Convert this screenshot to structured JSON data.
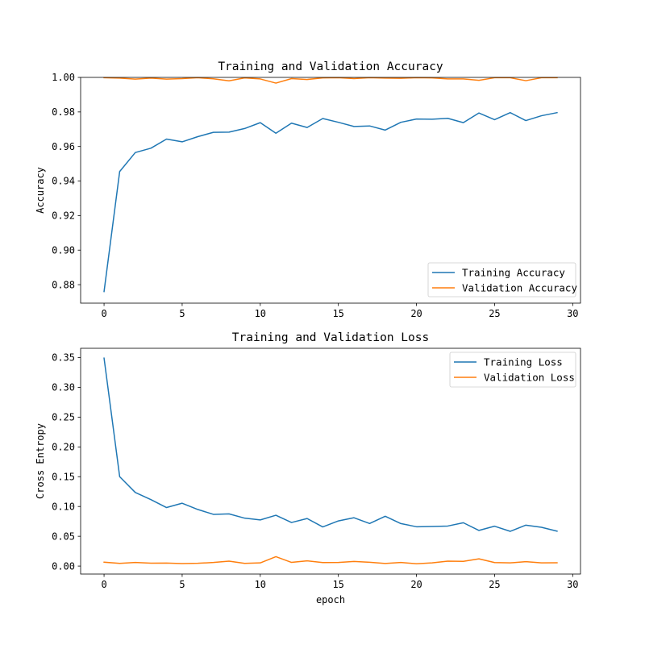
{
  "chart_data": [
    {
      "type": "line",
      "title": "Training and Validation Accuracy",
      "xlabel": "",
      "ylabel": "Accuracy",
      "xlim": [
        -1.5,
        30.5
      ],
      "ylim": [
        0.8693,
        1.0
      ],
      "xticks": [
        0,
        5,
        10,
        15,
        20,
        25,
        30
      ],
      "yticks": [
        0.88,
        0.9,
        0.92,
        0.94,
        0.96,
        0.98,
        1.0
      ],
      "ytick_decimals": 2,
      "legend_position": "lower-right",
      "grid": false,
      "x": [
        0,
        1,
        2,
        3,
        4,
        5,
        6,
        7,
        8,
        9,
        10,
        11,
        12,
        13,
        14,
        15,
        16,
        17,
        18,
        19,
        20,
        21,
        22,
        23,
        24,
        25,
        26,
        27,
        28,
        29
      ],
      "series": [
        {
          "name": "Training Accuracy",
          "color": "#1f77b4",
          "values": [
            0.876,
            0.9455,
            0.9565,
            0.959,
            0.9643,
            0.9627,
            0.9657,
            0.9682,
            0.9683,
            0.9704,
            0.9738,
            0.9677,
            0.9735,
            0.971,
            0.9762,
            0.974,
            0.9716,
            0.9719,
            0.9695,
            0.974,
            0.9759,
            0.9758,
            0.9763,
            0.9738,
            0.9794,
            0.9755,
            0.9796,
            0.975,
            0.9778,
            0.9796
          ]
        },
        {
          "name": "Validation Accuracy",
          "color": "#ff7f0e",
          "values": [
            0.9998,
            0.9996,
            0.999,
            0.9996,
            0.999,
            0.9993,
            0.9998,
            0.9992,
            0.998,
            0.9997,
            0.9991,
            0.9967,
            0.9993,
            0.9988,
            0.9997,
            0.9998,
            0.9993,
            0.9998,
            0.9996,
            0.9995,
            0.9998,
            0.9997,
            0.9991,
            0.9991,
            0.9983,
            0.9998,
            0.9998,
            0.9981,
            0.9998,
            0.9998
          ]
        }
      ]
    },
    {
      "type": "line",
      "title": "Training and Validation Loss",
      "xlabel": "epoch",
      "ylabel": "Cross Entropy",
      "xlim": [
        -1.5,
        30.5
      ],
      "ylim": [
        -0.0134,
        0.3655
      ],
      "xticks": [
        0,
        5,
        10,
        15,
        20,
        25,
        30
      ],
      "yticks": [
        0.0,
        0.05,
        0.1,
        0.15,
        0.2,
        0.25,
        0.3,
        0.35
      ],
      "ytick_decimals": 2,
      "legend_position": "upper-right",
      "grid": false,
      "x": [
        0,
        1,
        2,
        3,
        4,
        5,
        6,
        7,
        8,
        9,
        10,
        11,
        12,
        13,
        14,
        15,
        16,
        17,
        18,
        19,
        20,
        21,
        22,
        23,
        24,
        25,
        26,
        27,
        28,
        29
      ],
      "series": [
        {
          "name": "Training Loss",
          "color": "#1f77b4",
          "values": [
            0.349,
            0.15,
            0.1235,
            0.1115,
            0.0982,
            0.1055,
            0.095,
            0.0868,
            0.0876,
            0.0804,
            0.0774,
            0.0853,
            0.0731,
            0.0798,
            0.0657,
            0.0758,
            0.0811,
            0.0714,
            0.0836,
            0.0713,
            0.066,
            0.0665,
            0.0672,
            0.0727,
            0.0598,
            0.0669,
            0.0583,
            0.0687,
            0.0651,
            0.0586
          ]
        },
        {
          "name": "Validation Loss",
          "color": "#ff7f0e",
          "values": [
            0.0065,
            0.0046,
            0.006,
            0.0049,
            0.0051,
            0.0042,
            0.0047,
            0.006,
            0.0083,
            0.0046,
            0.0053,
            0.0158,
            0.0062,
            0.0087,
            0.0059,
            0.0061,
            0.0077,
            0.0064,
            0.0044,
            0.006,
            0.0039,
            0.0053,
            0.0083,
            0.0079,
            0.0121,
            0.0059,
            0.0053,
            0.0074,
            0.0053,
            0.0056
          ]
        }
      ]
    }
  ]
}
